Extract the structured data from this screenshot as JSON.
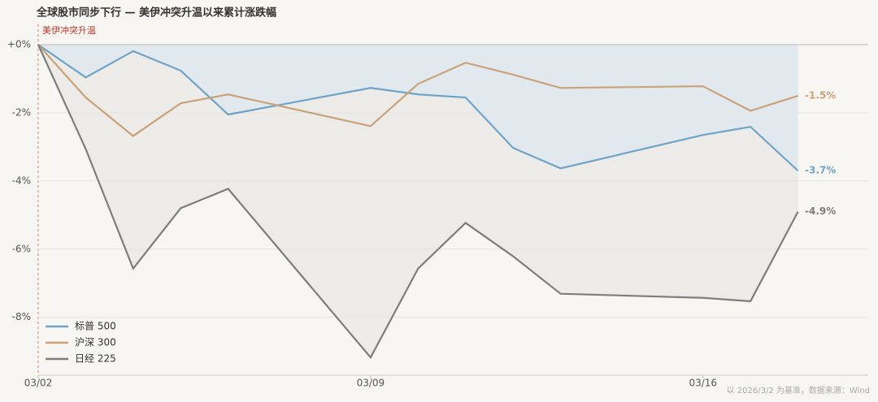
{
  "chart_data": {
    "type": "line",
    "title": "全球股市同步下行 — 美伊冲突升温以来累计涨跌幅",
    "annotation": "美伊冲突升温",
    "footnote": "以 2026/3/2 为基准，数据来源：Wind",
    "x": [
      "03/02",
      "03/03",
      "03/04",
      "03/05",
      "03/06",
      "03/09",
      "03/10",
      "03/11",
      "03/12",
      "03/13",
      "03/16",
      "03/17",
      "03/18"
    ],
    "xlim": [
      "03/02",
      "03/19"
    ],
    "xticks": [
      "03/02",
      "03/09",
      "03/16"
    ],
    "ylim": [
      -9.7,
      0
    ],
    "yticks": [
      {
        "value": 0,
        "label": "+0%"
      },
      {
        "value": -2,
        "label": "-2%"
      },
      {
        "value": -4,
        "label": "-4%"
      },
      {
        "value": -6,
        "label": "-6%"
      },
      {
        "value": -8,
        "label": "-8%"
      }
    ],
    "grid": true,
    "legend": "lower left",
    "series": [
      {
        "name": "标普 500",
        "color": "#6fa3c7",
        "fill": "#e2e9ee",
        "values": [
          0,
          -0.96,
          -0.19,
          -0.76,
          -2.05,
          -1.27,
          -1.46,
          -1.55,
          -3.03,
          -3.63,
          -2.65,
          -2.41,
          -3.7
        ],
        "end_label": "-3.7%"
      },
      {
        "name": "沪深 300",
        "color": "#c9a27a",
        "values": [
          0,
          -1.55,
          -2.68,
          -1.72,
          -1.46,
          -2.39,
          -1.15,
          -0.53,
          -0.88,
          -1.27,
          -1.22,
          -1.94,
          -1.5
        ],
        "end_label": "-1.5%"
      },
      {
        "name": "日经 225",
        "color": "#7d7d7d",
        "fill": "#ecebe8",
        "values": [
          0,
          -3.06,
          -6.57,
          -4.8,
          -4.23,
          -9.18,
          -6.57,
          -5.23,
          -6.21,
          -7.31,
          -7.43,
          -7.53,
          -4.9
        ],
        "end_label": "-4.9%"
      }
    ]
  }
}
